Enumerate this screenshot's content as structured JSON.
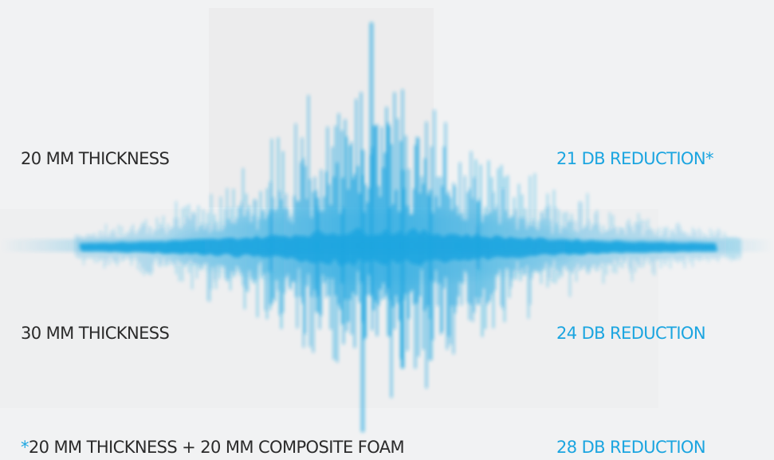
{
  "rows": [
    {
      "thickness": "20 MM THICKNESS",
      "reduction": "21 DB REDUCTION",
      "reduction_marker": "*"
    },
    {
      "thickness": "30 MM THICKNESS",
      "reduction": "24 DB REDUCTION"
    },
    {
      "thickness_marker": "*",
      "thickness": "20 MM THICKNESS + 20 MM COMPOSITE FOAM",
      "reduction": "28 DB REDUCTION"
    }
  ],
  "colors": {
    "accent": "#1ba5e0",
    "text": "#2b2b2b",
    "background": "#f1f2f3"
  },
  "icons": [
    "sound-wave-graphic"
  ]
}
